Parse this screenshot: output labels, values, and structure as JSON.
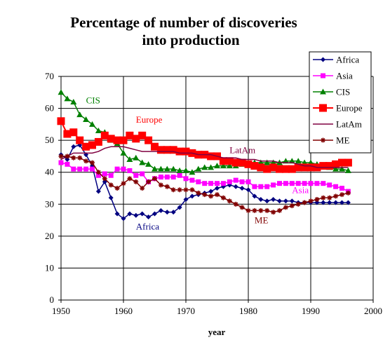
{
  "chart_data": {
    "type": "line",
    "title_lines": [
      "Percentage of number of discoveries",
      "into production"
    ],
    "xlabel": "year",
    "ylabel": "",
    "xlim": [
      1950,
      2000
    ],
    "ylim": [
      0,
      70
    ],
    "xticks": [
      1950,
      1960,
      1970,
      1980,
      1990,
      2000
    ],
    "yticks": [
      0,
      10,
      20,
      30,
      40,
      50,
      60,
      70
    ],
    "grid": "major-vertical-and-horizontal",
    "legend_position": "top-right",
    "series": [
      {
        "name": "Africa",
        "color": "#000080",
        "marker": "diamond",
        "x": [
          1950,
          1951,
          1952,
          1953,
          1954,
          1955,
          1956,
          1957,
          1958,
          1959,
          1960,
          1961,
          1962,
          1963,
          1964,
          1965,
          1966,
          1967,
          1968,
          1969,
          1970,
          1971,
          1972,
          1973,
          1974,
          1975,
          1976,
          1977,
          1978,
          1979,
          1980,
          1981,
          1982,
          1983,
          1984,
          1985,
          1986,
          1987,
          1988,
          1989,
          1990,
          1991,
          1992,
          1993,
          1994,
          1995,
          1996
        ],
        "y": [
          45.5,
          44,
          48,
          48.5,
          45.5,
          42,
          34,
          37,
          32,
          27,
          25.5,
          27,
          26.5,
          27,
          26,
          27,
          28,
          27.5,
          27.5,
          29,
          31.5,
          32.5,
          33,
          33.5,
          34,
          35,
          35.5,
          36,
          35.5,
          35,
          34.5,
          32.5,
          31.5,
          31,
          31.5,
          31,
          31,
          31,
          30.5,
          30.5,
          30.5,
          30.5,
          30.5,
          30.5,
          30.5,
          30.5,
          30.5
        ]
      },
      {
        "name": "Asia",
        "color": "#ff00ff",
        "marker": "square",
        "x": [
          1950,
          1951,
          1952,
          1953,
          1954,
          1955,
          1956,
          1957,
          1958,
          1959,
          1960,
          1961,
          1962,
          1963,
          1964,
          1965,
          1966,
          1967,
          1968,
          1969,
          1970,
          1971,
          1972,
          1973,
          1974,
          1975,
          1976,
          1977,
          1978,
          1979,
          1980,
          1981,
          1982,
          1983,
          1984,
          1985,
          1986,
          1987,
          1988,
          1989,
          1990,
          1991,
          1992,
          1993,
          1994,
          1995,
          1996
        ],
        "y": [
          43,
          42.5,
          41,
          41,
          41,
          41,
          39,
          39.5,
          39,
          41,
          41,
          40.5,
          39,
          39.5,
          37,
          38,
          38.5,
          38.5,
          38.5,
          39,
          38,
          37.5,
          37,
          36.5,
          36.5,
          36.5,
          36.5,
          37,
          37.5,
          37,
          37,
          35.5,
          35.5,
          35.5,
          36,
          36.5,
          36.5,
          36.5,
          36.5,
          36.5,
          36.5,
          36.5,
          36.5,
          36,
          35.5,
          35,
          34
        ]
      },
      {
        "name": "CIS",
        "color": "#008000",
        "marker": "triangle",
        "x": [
          1950,
          1951,
          1952,
          1953,
          1954,
          1955,
          1956,
          1957,
          1958,
          1959,
          1960,
          1961,
          1962,
          1963,
          1964,
          1965,
          1966,
          1967,
          1968,
          1969,
          1970,
          1971,
          1972,
          1973,
          1974,
          1975,
          1976,
          1977,
          1978,
          1979,
          1980,
          1981,
          1982,
          1983,
          1984,
          1985,
          1986,
          1987,
          1988,
          1989,
          1990,
          1991,
          1992,
          1993,
          1994,
          1995,
          1996
        ],
        "y": [
          65,
          63,
          62,
          58,
          56.5,
          55,
          53,
          52.5,
          50,
          49,
          46,
          44,
          44.5,
          43,
          42.5,
          41,
          41,
          41,
          41,
          40.5,
          40.5,
          40,
          41,
          41.5,
          41.5,
          42,
          42,
          42,
          42,
          42.5,
          43,
          43,
          43,
          43,
          43,
          43,
          43.5,
          43.5,
          43.5,
          43,
          43,
          42.5,
          42,
          41.5,
          41,
          41,
          40.5
        ]
      },
      {
        "name": "Europe",
        "color": "#ff0000",
        "marker": "square-large",
        "x": [
          1950,
          1951,
          1952,
          1953,
          1954,
          1955,
          1956,
          1957,
          1958,
          1959,
          1960,
          1961,
          1962,
          1963,
          1964,
          1965,
          1966,
          1967,
          1968,
          1969,
          1970,
          1971,
          1972,
          1973,
          1974,
          1975,
          1976,
          1977,
          1978,
          1979,
          1980,
          1981,
          1982,
          1983,
          1984,
          1985,
          1986,
          1987,
          1988,
          1989,
          1990,
          1991,
          1992,
          1993,
          1994,
          1995,
          1996
        ],
        "y": [
          56,
          52,
          52.5,
          50,
          48,
          48.5,
          49.5,
          51.5,
          50.5,
          50,
          50,
          51.5,
          50.5,
          51.5,
          50,
          48,
          47,
          47,
          47,
          46.5,
          46.5,
          46,
          45.5,
          45.5,
          45,
          45,
          43.5,
          43.5,
          43,
          43,
          42.5,
          42,
          41.5,
          41,
          41.5,
          41,
          41,
          41,
          41.5,
          41.5,
          41.5,
          41.5,
          42,
          42,
          42.5,
          43,
          43
        ]
      },
      {
        "name": "LatAm",
        "color": "#800040",
        "marker": "line",
        "x": [
          1950,
          1951,
          1952,
          1953,
          1954,
          1955,
          1956,
          1957,
          1958,
          1959,
          1960,
          1961,
          1962,
          1963,
          1964,
          1965,
          1966,
          1967,
          1968,
          1969,
          1970,
          1971,
          1972,
          1973,
          1974,
          1975,
          1976,
          1977,
          1978,
          1979,
          1980,
          1981,
          1982,
          1983,
          1984,
          1985,
          1986,
          1987,
          1988,
          1989,
          1990,
          1991,
          1992,
          1993,
          1994,
          1995,
          1996
        ],
        "y": [
          44,
          45,
          46,
          46,
          46,
          46,
          46.5,
          47.5,
          48,
          48,
          48,
          47.5,
          47,
          46.5,
          46.5,
          46.5,
          46.5,
          46.5,
          46.5,
          46,
          46,
          46,
          45.5,
          45.5,
          45.5,
          45,
          44.5,
          44.5,
          44.5,
          44,
          44,
          44,
          43.5,
          43.5,
          43.5,
          43,
          43,
          43,
          42.5,
          42,
          42,
          41.5,
          41.5,
          41.5,
          41.5,
          41.5,
          41.5
        ]
      },
      {
        "name": "ME",
        "color": "#800000",
        "marker": "star",
        "x": [
          1950,
          1951,
          1952,
          1953,
          1954,
          1955,
          1956,
          1957,
          1958,
          1959,
          1960,
          1961,
          1962,
          1963,
          1964,
          1965,
          1966,
          1967,
          1968,
          1969,
          1970,
          1971,
          1972,
          1973,
          1974,
          1975,
          1976,
          1977,
          1978,
          1979,
          1980,
          1981,
          1982,
          1983,
          1984,
          1985,
          1986,
          1987,
          1988,
          1989,
          1990,
          1991,
          1992,
          1993,
          1994,
          1995,
          1996
        ],
        "y": [
          45,
          45,
          44.5,
          44.5,
          43.5,
          43,
          40,
          38,
          36,
          35,
          36.5,
          38,
          37,
          35,
          37,
          38,
          36,
          35.5,
          34.5,
          34.5,
          34.5,
          34.5,
          33.5,
          33,
          32.5,
          33,
          32,
          31,
          30,
          29,
          28,
          28,
          28,
          28,
          27.5,
          28,
          29,
          29.5,
          30,
          30.5,
          31,
          31.5,
          32,
          32,
          32.5,
          33,
          33.5
        ]
      }
    ],
    "annotations": [
      {
        "text": "CIS",
        "series": "CIS",
        "x": 1954,
        "y": 61.5
      },
      {
        "text": "Europe",
        "series": "Europe",
        "x": 1962,
        "y": 55.5
      },
      {
        "text": "LatAm",
        "series": "LatAm",
        "x": 1977,
        "y": 46
      },
      {
        "text": "Asia",
        "series": "Asia",
        "x": 1987,
        "y": 33.5
      },
      {
        "text": "ME",
        "series": "ME",
        "x": 1981,
        "y": 24
      },
      {
        "text": "Africa",
        "series": "Africa",
        "x": 1962,
        "y": 22
      }
    ]
  }
}
